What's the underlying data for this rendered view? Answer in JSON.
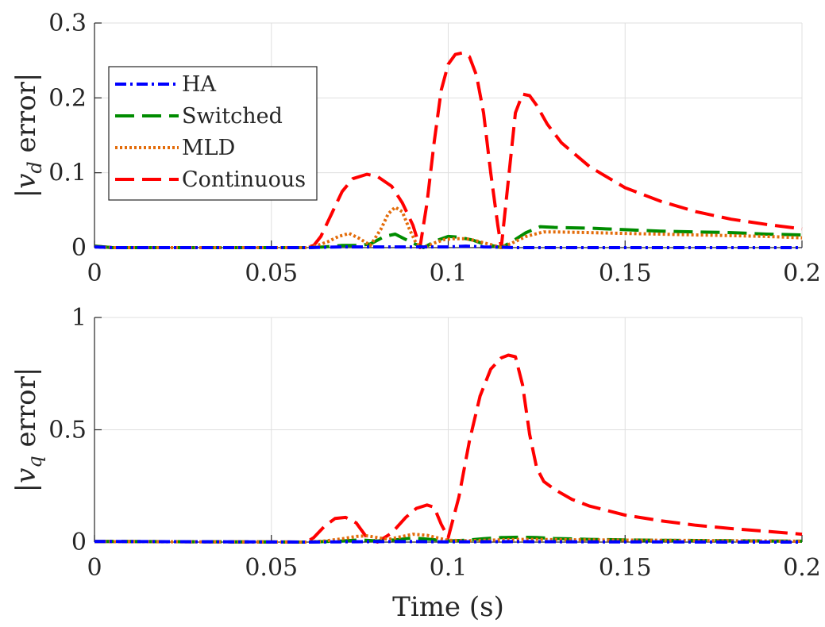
{
  "chart_data": [
    {
      "type": "line",
      "ylabel": "|v_d error|",
      "ylabel_main": "|v",
      "ylabel_sub": "d",
      "ylabel_rest": " error|",
      "xlabel": "",
      "xlim": [
        0,
        0.2
      ],
      "ylim": [
        0,
        0.3
      ],
      "xticks": [
        0,
        0.05,
        0.1,
        0.15,
        0.2
      ],
      "xtick_labels": [
        "0",
        "0.05",
        "0.1",
        "0.15",
        "0.2"
      ],
      "yticks": [
        0,
        0.1,
        0.2,
        0.3
      ],
      "ytick_labels": [
        "0",
        "0.1",
        "0.2",
        "0.3"
      ],
      "grid": true,
      "legend_position": "upper-left",
      "series": [
        {
          "name": "HA",
          "color": "#0000ff",
          "style": "dash-dot",
          "x": [
            0,
            0.005,
            0.06,
            0.065,
            0.07,
            0.08,
            0.09,
            0.1,
            0.105,
            0.11,
            0.115,
            0.12,
            0.14,
            0.16,
            0.18,
            0.2
          ],
          "y": [
            0.001,
            0.0,
            0.0,
            0.0005,
            0.001,
            0.001,
            0.001,
            0.001,
            0.002,
            0.001,
            0.0005,
            0.0,
            0.0,
            0.0,
            0.0,
            0.0
          ]
        },
        {
          "name": "Switched",
          "color": "#008c00",
          "style": "dashed",
          "x": [
            0,
            0.005,
            0.06,
            0.065,
            0.07,
            0.075,
            0.078,
            0.082,
            0.085,
            0.09,
            0.093,
            0.097,
            0.1,
            0.103,
            0.107,
            0.11,
            0.115,
            0.118,
            0.122,
            0.126,
            0.13,
            0.14,
            0.15,
            0.16,
            0.17,
            0.18,
            0.19,
            0.2
          ],
          "y": [
            0.002,
            0.0,
            0.0,
            0.001,
            0.003,
            0.003,
            0.005,
            0.015,
            0.018,
            0.006,
            0.0,
            0.01,
            0.015,
            0.014,
            0.01,
            0.005,
            0.0,
            0.008,
            0.02,
            0.028,
            0.027,
            0.026,
            0.024,
            0.022,
            0.021,
            0.02,
            0.018,
            0.017
          ]
        },
        {
          "name": "MLD",
          "color": "#e36c0a",
          "style": "dotted",
          "x": [
            0,
            0.005,
            0.06,
            0.063,
            0.066,
            0.069,
            0.072,
            0.075,
            0.078,
            0.081,
            0.083,
            0.085,
            0.087,
            0.089,
            0.091,
            0.093,
            0.096,
            0.099,
            0.102,
            0.105,
            0.108,
            0.112,
            0.115,
            0.118,
            0.122,
            0.127,
            0.13,
            0.14,
            0.15,
            0.16,
            0.17,
            0.18,
            0.19,
            0.2
          ],
          "y": [
            0.001,
            0.0,
            0.0,
            0.003,
            0.008,
            0.015,
            0.019,
            0.012,
            0.003,
            0.025,
            0.045,
            0.054,
            0.048,
            0.025,
            0.005,
            0.0,
            0.006,
            0.011,
            0.012,
            0.012,
            0.009,
            0.004,
            0.0,
            0.006,
            0.015,
            0.021,
            0.021,
            0.02,
            0.019,
            0.018,
            0.017,
            0.016,
            0.015,
            0.013
          ]
        },
        {
          "name": "Continuous",
          "color": "#ff0000",
          "style": "dashed",
          "x": [
            0,
            0.005,
            0.06,
            0.062,
            0.064,
            0.067,
            0.07,
            0.073,
            0.077,
            0.08,
            0.084,
            0.087,
            0.09,
            0.092,
            0.094,
            0.096,
            0.098,
            0.1,
            0.102,
            0.104,
            0.106,
            0.108,
            0.11,
            0.112,
            0.114,
            0.115,
            0.117,
            0.119,
            0.121,
            0.123,
            0.125,
            0.128,
            0.132,
            0.14,
            0.15,
            0.16,
            0.17,
            0.18,
            0.19,
            0.2
          ],
          "y": [
            0.002,
            0.0,
            0.0,
            0.003,
            0.015,
            0.045,
            0.075,
            0.092,
            0.098,
            0.095,
            0.082,
            0.06,
            0.03,
            0.0,
            0.06,
            0.14,
            0.21,
            0.245,
            0.258,
            0.26,
            0.255,
            0.23,
            0.18,
            0.1,
            0.03,
            0.0,
            0.09,
            0.18,
            0.205,
            0.203,
            0.19,
            0.165,
            0.14,
            0.108,
            0.08,
            0.062,
            0.048,
            0.038,
            0.031,
            0.025
          ]
        }
      ]
    },
    {
      "type": "line",
      "ylabel": "|v_q error|",
      "ylabel_main": "|v",
      "ylabel_sub": "q",
      "ylabel_rest": " error|",
      "xlabel": "Time (s)",
      "xlim": [
        0,
        0.2
      ],
      "ylim": [
        0,
        1
      ],
      "xticks": [
        0,
        0.05,
        0.1,
        0.15,
        0.2
      ],
      "xtick_labels": [
        "0",
        "0.05",
        "0.1",
        "0.15",
        "0.2"
      ],
      "yticks": [
        0,
        0.5,
        1
      ],
      "ytick_labels": [
        "0",
        "0.5",
        "1"
      ],
      "grid": true,
      "series": [
        {
          "name": "HA",
          "color": "#0000ff",
          "style": "dash-dot",
          "x": [
            0,
            0.06,
            0.07,
            0.08,
            0.09,
            0.1,
            0.12,
            0.14,
            0.16,
            0.18,
            0.2
          ],
          "y": [
            0.003,
            0.0,
            0.001,
            0.002,
            0.002,
            0.001,
            0.002,
            0.001,
            0.001,
            0.0,
            0.0
          ]
        },
        {
          "name": "Switched",
          "color": "#008c00",
          "style": "dashed",
          "x": [
            0,
            0.06,
            0.065,
            0.07,
            0.075,
            0.08,
            0.085,
            0.09,
            0.095,
            0.1,
            0.105,
            0.11,
            0.115,
            0.12,
            0.125,
            0.13,
            0.14,
            0.15,
            0.16,
            0.17,
            0.18,
            0.19,
            0.2
          ],
          "y": [
            0.003,
            0.0,
            0.002,
            0.005,
            0.01,
            0.005,
            0.01,
            0.018,
            0.012,
            0.005,
            0.008,
            0.015,
            0.02,
            0.022,
            0.02,
            0.016,
            0.012,
            0.01,
            0.008,
            0.007,
            0.006,
            0.005,
            0.004
          ]
        },
        {
          "name": "MLD",
          "color": "#e36c0a",
          "style": "dotted",
          "x": [
            0,
            0.06,
            0.065,
            0.07,
            0.074,
            0.077,
            0.08,
            0.083,
            0.087,
            0.09,
            0.094,
            0.098,
            0.1,
            0.105,
            0.11,
            0.115,
            0.12,
            0.125,
            0.13,
            0.14,
            0.15,
            0.16,
            0.17,
            0.18,
            0.19,
            0.2
          ],
          "y": [
            0.002,
            0.0,
            0.005,
            0.015,
            0.025,
            0.028,
            0.02,
            0.012,
            0.025,
            0.035,
            0.03,
            0.015,
            0.008,
            0.006,
            0.008,
            0.01,
            0.012,
            0.012,
            0.011,
            0.01,
            0.009,
            0.008,
            0.007,
            0.006,
            0.005,
            0.004
          ]
        },
        {
          "name": "Continuous",
          "color": "#ff0000",
          "style": "dashed",
          "x": [
            0,
            0.06,
            0.062,
            0.065,
            0.068,
            0.071,
            0.074,
            0.077,
            0.08,
            0.084,
            0.088,
            0.091,
            0.094,
            0.096,
            0.098,
            0.1,
            0.103,
            0.106,
            0.109,
            0.112,
            0.115,
            0.117,
            0.119,
            0.121,
            0.123,
            0.125,
            0.127,
            0.13,
            0.135,
            0.14,
            0.15,
            0.16,
            0.17,
            0.18,
            0.19,
            0.2
          ],
          "y": [
            0.003,
            0.0,
            0.02,
            0.07,
            0.105,
            0.11,
            0.085,
            0.02,
            0.0,
            0.04,
            0.11,
            0.15,
            0.165,
            0.155,
            0.08,
            0.02,
            0.2,
            0.45,
            0.65,
            0.77,
            0.82,
            0.832,
            0.825,
            0.7,
            0.48,
            0.33,
            0.27,
            0.235,
            0.19,
            0.16,
            0.12,
            0.095,
            0.075,
            0.06,
            0.048,
            0.035
          ]
        }
      ]
    }
  ]
}
